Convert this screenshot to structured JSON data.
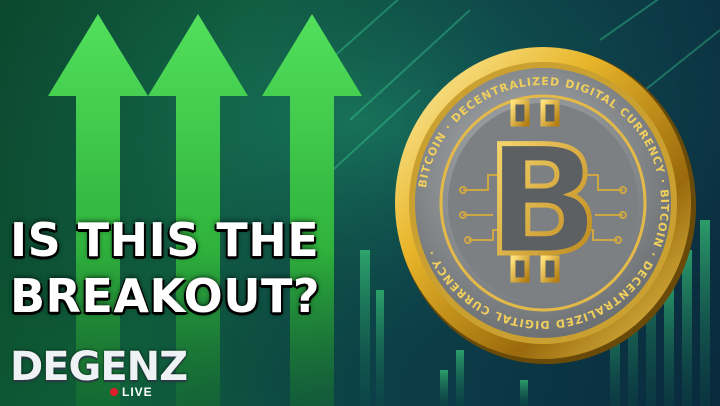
{
  "headline": {
    "line1": "IS THIS THE",
    "line2": "BREAKOUT?"
  },
  "logo": {
    "wordmark": "DEGENZ",
    "live": "LIVE"
  },
  "coin": {
    "symbol": "B",
    "ring_text": "BITCOIN · DECENTRALIZED DIGITAL CURRENCY · BITCOIN · DECENTRALIZED DIGITAL CURRENCY ·"
  },
  "colors": {
    "arrow_green": "#3fcf4a",
    "gold": "#d9a520",
    "coin_face": "#8a8e90"
  },
  "icons": [
    "up-arrow-icon",
    "bitcoin-coin-icon"
  ]
}
